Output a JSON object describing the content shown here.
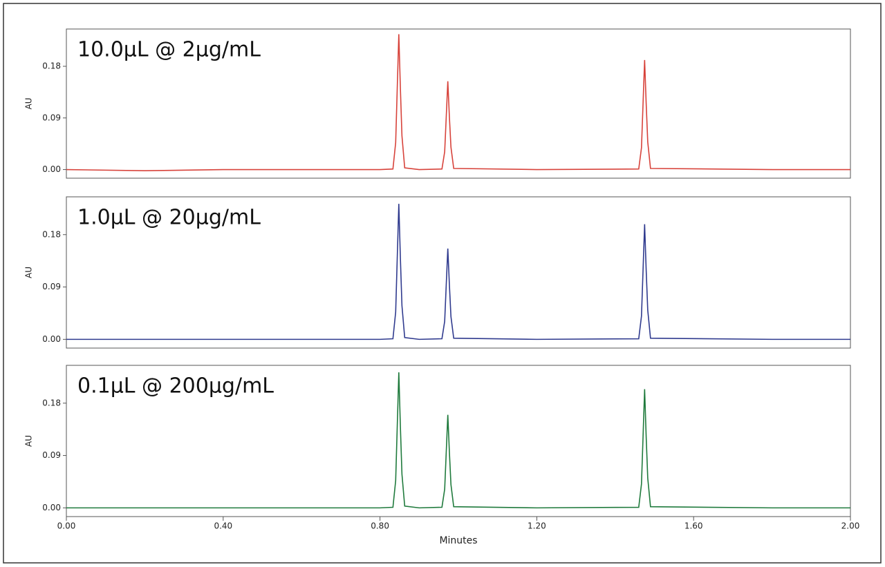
{
  "chart_data": [
    {
      "type": "line",
      "title": "10.0µL @ 2µg/mL",
      "ylabel": "AU",
      "color": "#d7423a",
      "x": [
        0,
        0.2,
        0.4,
        0.6,
        0.8,
        0.833,
        0.84,
        0.844,
        0.848,
        0.852,
        0.856,
        0.863,
        0.9,
        0.958,
        0.965,
        0.969,
        0.973,
        0.977,
        0.981,
        0.988,
        1.2,
        1.46,
        1.467,
        1.471,
        1.475,
        1.479,
        1.483,
        1.49,
        1.8,
        2.0
      ],
      "values": [
        0,
        -0.002,
        0,
        0,
        0,
        0.001,
        0.047,
        0.142,
        0.236,
        0.142,
        0.059,
        0.003,
        0,
        0.001,
        0.031,
        0.092,
        0.154,
        0.092,
        0.039,
        0.002,
        0,
        0.001,
        0.038,
        0.115,
        0.191,
        0.115,
        0.048,
        0.002,
        0,
        0
      ],
      "xlim": [
        0,
        2
      ],
      "ylim": [
        -0.015,
        0.245
      ],
      "yticks": [
        {
          "value": 0,
          "label": "0.00"
        },
        0.09,
        0.18
      ]
    },
    {
      "type": "line",
      "title": "1.0µL @ 20µg/mL",
      "ylabel": "AU",
      "color": "#2f3a8e",
      "x": [
        0,
        0.2,
        0.4,
        0.6,
        0.8,
        0.833,
        0.84,
        0.844,
        0.848,
        0.852,
        0.856,
        0.863,
        0.9,
        0.958,
        0.965,
        0.969,
        0.973,
        0.977,
        0.981,
        0.988,
        1.2,
        1.46,
        1.467,
        1.471,
        1.475,
        1.479,
        1.483,
        1.49,
        1.8,
        2.0
      ],
      "values": [
        0,
        0,
        0,
        0,
        0,
        0.001,
        0.047,
        0.14,
        0.233,
        0.14,
        0.058,
        0.003,
        0,
        0.001,
        0.031,
        0.094,
        0.156,
        0.094,
        0.039,
        0.002,
        0,
        0.001,
        0.04,
        0.119,
        0.198,
        0.119,
        0.05,
        0.002,
        0,
        0
      ],
      "xlim": [
        0,
        2
      ],
      "ylim": [
        -0.015,
        0.245
      ],
      "yticks": [
        {
          "value": 0,
          "label": "0.00"
        },
        0.09,
        0.18
      ]
    },
    {
      "type": "line",
      "title": "0.1µL @ 200µg/mL",
      "ylabel": "AU",
      "xlabel": "Minutes",
      "color": "#1f7a3c",
      "x": [
        0,
        0.2,
        0.4,
        0.6,
        0.8,
        0.833,
        0.84,
        0.844,
        0.848,
        0.852,
        0.856,
        0.863,
        0.9,
        0.958,
        0.965,
        0.969,
        0.973,
        0.977,
        0.981,
        0.988,
        1.2,
        1.46,
        1.467,
        1.471,
        1.475,
        1.479,
        1.483,
        1.49,
        1.8,
        2.0
      ],
      "values": [
        0,
        0,
        0,
        0,
        0,
        0.001,
        0.047,
        0.14,
        0.233,
        0.14,
        0.058,
        0.003,
        0,
        0.001,
        0.032,
        0.096,
        0.16,
        0.096,
        0.04,
        0.002,
        0,
        0.001,
        0.041,
        0.122,
        0.204,
        0.122,
        0.051,
        0.002,
        0,
        0
      ],
      "xlim": [
        0,
        2
      ],
      "ylim": [
        -0.015,
        0.245
      ],
      "yticks": [
        {
          "value": 0,
          "label": "0.00"
        },
        0.09,
        0.18
      ],
      "xticks": [
        {
          "value": 0,
          "label": "0.00"
        },
        {
          "value": 0.4,
          "label": "0.40"
        },
        {
          "value": 0.8,
          "label": "0.80"
        },
        {
          "value": 1.2,
          "label": "1.20"
        },
        {
          "value": 1.6,
          "label": "1.60"
        },
        {
          "value": 2,
          "label": "2.00"
        }
      ]
    }
  ]
}
